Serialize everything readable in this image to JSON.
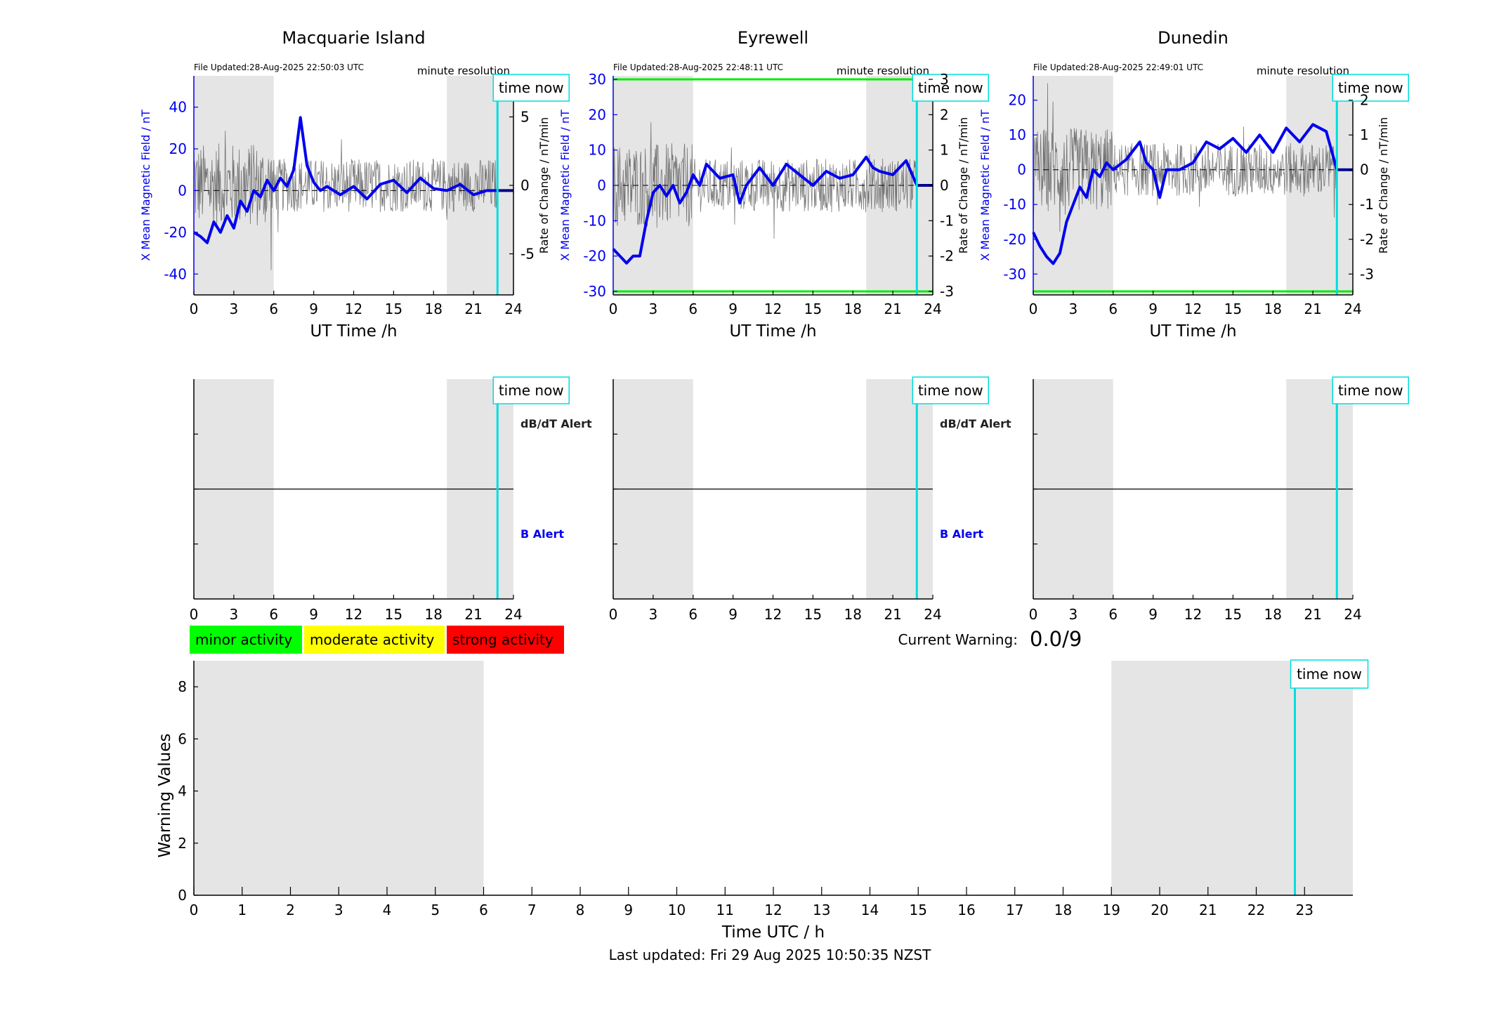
{
  "common": {
    "time_now_label": "time now",
    "minute_resolution": "minute resolution",
    "ut_xlabel": "UT Time /h",
    "left_ylabel": "X Mean Magnetic Field / nT",
    "right_ylabel": "Rate of Change / nT/min",
    "dbdt_alert": "dB/dT Alert",
    "b_alert": "B Alert",
    "time_now_hour": 22.8,
    "shaded_hours": [
      [
        0,
        6
      ],
      [
        19,
        24
      ]
    ],
    "xticks": [
      0,
      3,
      6,
      9,
      12,
      15,
      18,
      21,
      24
    ],
    "colors": {
      "field": "#0000ee",
      "roc": "#444444",
      "time_now": "#00dddd",
      "threshold": "#00ee00",
      "shade": "#e5e5e5"
    }
  },
  "stations": [
    {
      "title": "Macquarie Island",
      "file_updated": "File Updated:28-Aug-2025 22:50:03 UTC",
      "ylim": [
        -50,
        55
      ],
      "yticks": [
        -40,
        -20,
        0,
        20,
        40
      ],
      "rlim": [
        -8,
        8
      ],
      "rticks": [
        -5,
        0,
        5
      ],
      "threshold": null,
      "show_alert_labels": true
    },
    {
      "title": "Eyrewell",
      "file_updated": "File Updated:28-Aug-2025 22:48:11 UTC",
      "ylim": [
        -31,
        31
      ],
      "yticks": [
        -30,
        -20,
        -10,
        0,
        10,
        20,
        30
      ],
      "rlim": [
        -3.1,
        3.1
      ],
      "rticks": [
        -3,
        -2,
        -1,
        0,
        1,
        2,
        3
      ],
      "threshold": 30,
      "show_alert_labels": true
    },
    {
      "title": "Dunedin",
      "file_updated": "File Updated:28-Aug-2025 22:49:01 UTC",
      "ylim": [
        -36,
        27
      ],
      "yticks": [
        -30,
        -20,
        -10,
        0,
        10,
        20
      ],
      "rlim": [
        -3.6,
        2.7
      ],
      "rticks": [
        -3,
        -2,
        -1,
        0,
        1,
        2
      ],
      "threshold": -35,
      "show_alert_labels": false
    }
  ],
  "legend": [
    {
      "label": "minor activity",
      "color": "#00ff00"
    },
    {
      "label": "moderate activity",
      "color": "#ffff00"
    },
    {
      "label": "strong activity",
      "color": "#ff0000"
    }
  ],
  "current_warning_label": "Current Warning:",
  "current_warning_value": "0.0/9",
  "last_updated": "Last updated: Fri 29 Aug 2025 10:50:35 NZST",
  "chart_data": [
    {
      "type": "line",
      "title": "Macquarie Island",
      "xlabel": "UT Time /h",
      "ylabel": "X Mean Magnetic Field / nT",
      "ylabel_right": "Rate of Change / nT/min",
      "x": [
        0,
        0.5,
        1,
        1.5,
        2,
        2.5,
        3,
        3.5,
        4,
        4.5,
        5,
        5.5,
        6,
        6.5,
        7,
        7.5,
        8,
        8.5,
        9,
        9.5,
        10,
        11,
        12,
        13,
        14,
        15,
        16,
        17,
        18,
        19,
        20,
        21,
        22,
        22.8
      ],
      "series": [
        {
          "values": [
            -20,
            -22,
            -25,
            -15,
            -20,
            -12,
            -18,
            -5,
            -10,
            0,
            -3,
            5,
            0,
            6,
            2,
            10,
            35,
            12,
            4,
            0,
            2,
            -2,
            2,
            -4,
            3,
            5,
            -1,
            6,
            1,
            0,
            3,
            -2,
            0,
            0
          ]
        }
      ],
      "ylim": [
        -50,
        55
      ],
      "xlim": [
        0,
        24
      ]
    },
    {
      "type": "line",
      "title": "Eyrewell",
      "xlabel": "UT Time /h",
      "ylabel": "X Mean Magnetic Field / nT",
      "ylabel_right": "Rate of Change / nT/min",
      "x": [
        0,
        0.5,
        1,
        1.5,
        2,
        2.5,
        3,
        3.5,
        4,
        4.5,
        5,
        5.5,
        6,
        6.5,
        7,
        8,
        9,
        9.5,
        10,
        11,
        12,
        13,
        14,
        15,
        16,
        17,
        18,
        19,
        19.5,
        20,
        21,
        22,
        22.8
      ],
      "series": [
        {
          "values": [
            -18,
            -20,
            -22,
            -20,
            -20,
            -10,
            -2,
            0,
            -3,
            0,
            -5,
            -2,
            3,
            0,
            6,
            2,
            3,
            -5,
            0,
            5,
            0,
            6,
            3,
            0,
            4,
            2,
            3,
            8,
            5,
            4,
            3,
            7,
            0
          ]
        }
      ],
      "ylim": [
        -31,
        31
      ],
      "xlim": [
        0,
        24
      ]
    },
    {
      "type": "line",
      "title": "Dunedin",
      "xlabel": "UT Time /h",
      "ylabel": "X Mean Magnetic Field / nT",
      "ylabel_right": "Rate of Change / nT/min",
      "x": [
        0,
        0.5,
        1,
        1.5,
        2,
        2.5,
        3,
        3.5,
        4,
        4.5,
        5,
        5.5,
        6,
        7,
        8,
        8.5,
        9,
        9.5,
        10,
        11,
        12,
        13,
        14,
        15,
        16,
        17,
        18,
        19,
        20,
        21,
        22,
        22.8
      ],
      "series": [
        {
          "values": [
            -18,
            -22,
            -25,
            -27,
            -24,
            -15,
            -10,
            -5,
            -8,
            0,
            -2,
            2,
            0,
            3,
            8,
            2,
            0,
            -8,
            0,
            0,
            2,
            8,
            6,
            9,
            5,
            10,
            5,
            12,
            8,
            13,
            11,
            0
          ]
        }
      ],
      "ylim": [
        -36,
        27
      ],
      "xlim": [
        0,
        24
      ]
    },
    {
      "type": "line",
      "title": "",
      "xlabel": "Time UTC / h",
      "ylabel": "Warning Values",
      "x": [
        0,
        23
      ],
      "series": [
        {
          "values": [
            0,
            0
          ]
        }
      ],
      "ylim": [
        0,
        9
      ],
      "yticks": [
        0,
        2,
        4,
        6,
        8
      ],
      "xticks": [
        0,
        1,
        2,
        3,
        4,
        5,
        6,
        7,
        8,
        9,
        10,
        11,
        12,
        13,
        14,
        15,
        16,
        17,
        18,
        19,
        20,
        21,
        22,
        23
      ],
      "shaded_hours": [
        [
          0,
          6
        ],
        [
          19,
          24
        ]
      ],
      "time_now_hour": 22.8
    }
  ]
}
